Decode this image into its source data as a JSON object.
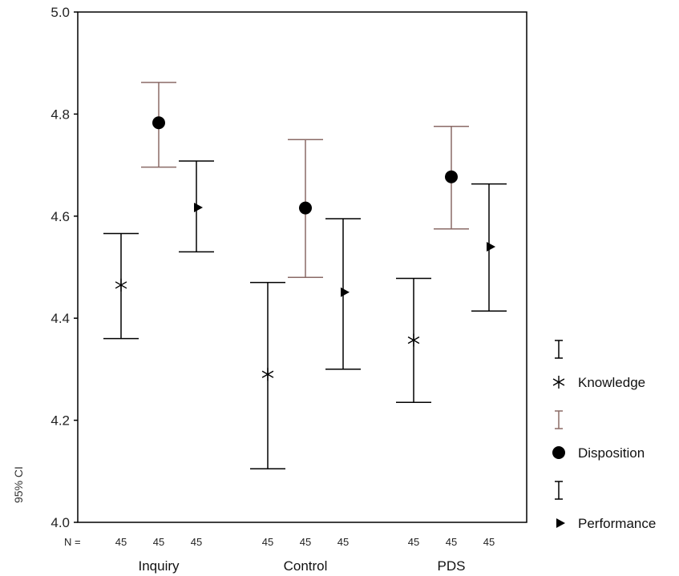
{
  "chart_data": {
    "type": "errorbar",
    "y_axis_label": "95% CI",
    "ylim": [
      4.0,
      5.0
    ],
    "y_ticks": [
      "4.0",
      "4.2",
      "4.4",
      "4.6",
      "4.8",
      "5.0"
    ],
    "n_prefix": "N =",
    "categories": [
      "Inquiry",
      "Control",
      "PDS"
    ],
    "series": [
      {
        "name": "Knowledge",
        "marker": "asterisk",
        "bar_color": "#000000",
        "means": [
          4.465,
          4.29,
          4.357
        ],
        "lower": [
          4.36,
          4.105,
          4.235
        ],
        "upper": [
          4.566,
          4.47,
          4.478
        ],
        "n": [
          "45",
          "45",
          "45"
        ]
      },
      {
        "name": "Disposition",
        "marker": "circle",
        "bar_color": "#8a6a66",
        "means": [
          4.783,
          4.616,
          4.677
        ],
        "lower": [
          4.696,
          4.48,
          4.575
        ],
        "upper": [
          4.862,
          4.75,
          4.776
        ],
        "n": [
          "45",
          "45",
          "45"
        ]
      },
      {
        "name": "Performance",
        "marker": "triangle-right",
        "bar_color": "#000000",
        "means": [
          4.617,
          4.451,
          4.54
        ],
        "lower": [
          4.53,
          4.3,
          4.414
        ],
        "upper": [
          4.708,
          4.595,
          4.663
        ],
        "n": [
          "45",
          "45",
          "45"
        ]
      }
    ]
  }
}
